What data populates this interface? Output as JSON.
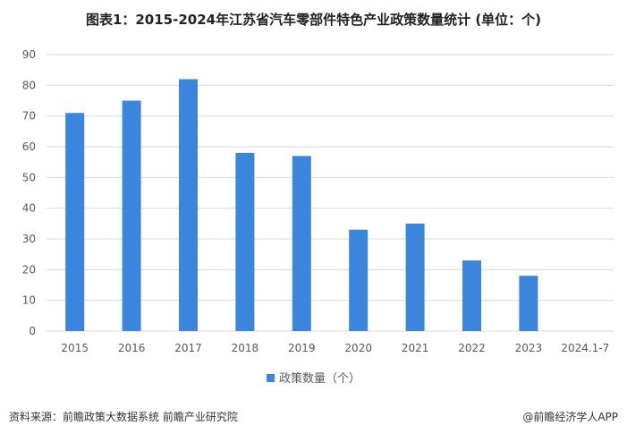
{
  "chart_data": {
    "type": "bar",
    "title": "图表1：2015-2024年江苏省汽车零部件特色产业政策数量统计 (单位：个)",
    "categories": [
      "2015",
      "2016",
      "2017",
      "2018",
      "2019",
      "2020",
      "2021",
      "2022",
      "2023",
      "2024.1-7"
    ],
    "series": [
      {
        "name": "政策数量（个）",
        "values": [
          71,
          75,
          82,
          58,
          57,
          33,
          35,
          23,
          18,
          null
        ]
      }
    ],
    "ylim": [
      0,
      90
    ],
    "yticks": [
      0,
      10,
      20,
      30,
      40,
      50,
      60,
      70,
      80,
      90
    ],
    "grid": true,
    "legend": "bottom",
    "bar_color": "#3b86dc"
  },
  "footer": {
    "source": "资料来源：前瞻政策大数据系统 前瞻产业研究院",
    "credit": "@前瞻经济学人APP"
  }
}
